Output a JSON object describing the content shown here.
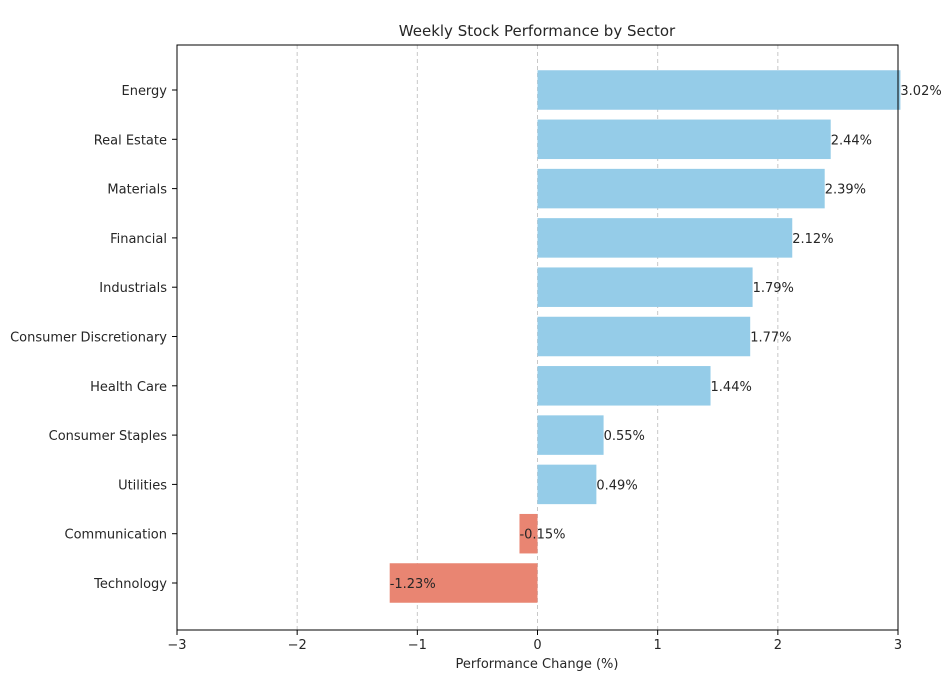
{
  "chart_data": {
    "type": "bar",
    "orientation": "horizontal",
    "title": "Weekly Stock Performance by Sector",
    "xlabel": "Performance Change (%)",
    "ylabel": "",
    "xlim": [
      -3,
      3
    ],
    "xticks": [
      "−3",
      "−2",
      "−1",
      "0",
      "1",
      "2",
      "3"
    ],
    "grid": "x, dashed",
    "categories": [
      "Energy",
      "Real Estate",
      "Materials",
      "Financial",
      "Industrials",
      "Consumer Discretionary",
      "Health Care",
      "Consumer Staples",
      "Utilities",
      "Communication",
      "Technology"
    ],
    "values": [
      3.02,
      2.44,
      2.39,
      2.12,
      1.79,
      1.77,
      1.44,
      0.55,
      0.49,
      -0.15,
      -1.23
    ],
    "value_labels": [
      "3.02%",
      "2.44%",
      "2.39%",
      "2.12%",
      "1.79%",
      "1.77%",
      "1.44%",
      "0.55%",
      "0.49%",
      "-0.15%",
      "-1.23%"
    ],
    "colors": {
      "positive": "#95cce8",
      "negative": "#e98572"
    }
  }
}
